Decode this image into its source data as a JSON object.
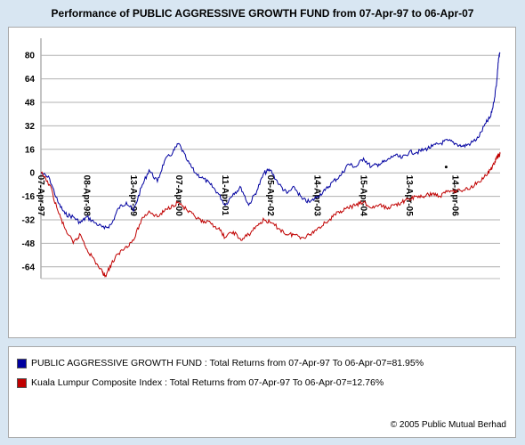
{
  "chart_data": {
    "type": "line",
    "title": "Performance of PUBLIC AGGRESSIVE GROWTH FUND from 07-Apr-97 to 06-Apr-07",
    "x_range": [
      "1997-04-07",
      "2007-04-06"
    ],
    "xtick_labels": [
      "07-Apr-97",
      "08-Apr-98",
      "13-Apr-99",
      "07-Apr-00",
      "11-Apr-01",
      "05-Apr-02",
      "14-Apr-03",
      "15-Apr-04",
      "13-Apr-05",
      "14-Apr-06"
    ],
    "xtick_dates": [
      "1997-04-07",
      "1998-04-08",
      "1999-04-13",
      "2000-04-07",
      "2001-04-11",
      "2002-04-05",
      "2003-04-14",
      "2004-04-15",
      "2005-04-13",
      "2006-04-14"
    ],
    "yticks": [
      80,
      64,
      48,
      32,
      16,
      0,
      -16,
      -32,
      -48,
      -64
    ],
    "ylim": [
      -72,
      88
    ],
    "grid": "horizontal",
    "legend_position": "bottom",
    "series": [
      {
        "name": "PUBLIC AGGRESSIVE GROWTH FUND : Total Returns from 07-Apr-97 To 06-Apr-07=81.95%",
        "color": "#0000a0",
        "dates": [
          "1997-04-07",
          "1997-06-15",
          "1997-08-20",
          "1997-10-15",
          "1997-12-20",
          "1998-02-15",
          "1998-04-08",
          "1998-06-10",
          "1998-08-25",
          "1998-10-20",
          "1998-12-15",
          "1999-02-15",
          "1999-04-13",
          "1999-06-15",
          "1999-08-15",
          "1999-10-20",
          "1999-12-15",
          "2000-02-20",
          "2000-04-07",
          "2000-06-15",
          "2000-08-15",
          "2000-10-20",
          "2000-12-15",
          "2001-02-15",
          "2001-04-11",
          "2001-06-15",
          "2001-08-15",
          "2001-10-15",
          "2001-12-20",
          "2002-02-15",
          "2002-04-05",
          "2002-06-15",
          "2002-08-15",
          "2002-10-15",
          "2002-12-15",
          "2003-02-15",
          "2003-04-14",
          "2003-06-15",
          "2003-08-15",
          "2003-10-15",
          "2003-12-15",
          "2004-02-15",
          "2004-04-15",
          "2004-06-15",
          "2004-08-15",
          "2004-10-15",
          "2004-12-15",
          "2005-02-15",
          "2005-04-13",
          "2005-06-15",
          "2005-08-15",
          "2005-10-15",
          "2005-12-15",
          "2006-02-15",
          "2006-04-14",
          "2006-06-15",
          "2006-08-15",
          "2006-10-15",
          "2006-12-15",
          "2007-01-20",
          "2007-02-15",
          "2007-03-10",
          "2007-03-25",
          "2007-04-06"
        ],
        "values": [
          0,
          -4,
          -20,
          -28,
          -30,
          -34,
          -30,
          -34,
          -38,
          -35,
          -24,
          -20,
          -26,
          -10,
          2,
          -6,
          8,
          14,
          20,
          8,
          0,
          -4,
          -8,
          -14,
          -22,
          -14,
          -10,
          -22,
          -12,
          0,
          2,
          -8,
          -14,
          -10,
          -18,
          -20,
          -16,
          -12,
          -6,
          -2,
          6,
          4,
          10,
          4,
          6,
          8,
          12,
          10,
          14,
          14,
          16,
          18,
          20,
          22,
          20,
          18,
          20,
          24,
          34,
          38,
          48,
          62,
          78,
          82
        ]
      },
      {
        "name": "Kuala Lumpur Composite Index : Total Returns from 07-Apr-97 To 06-Apr-07=12.76%",
        "color": "#c00000",
        "dates": [
          "1997-04-07",
          "1997-06-15",
          "1997-08-20",
          "1997-10-15",
          "1997-12-20",
          "1998-02-15",
          "1998-04-08",
          "1998-06-10",
          "1998-08-10",
          "1998-09-01",
          "1998-10-20",
          "1998-12-15",
          "1999-02-15",
          "1999-04-13",
          "1999-06-15",
          "1999-08-15",
          "1999-10-20",
          "1999-12-15",
          "2000-02-20",
          "2000-04-07",
          "2000-06-15",
          "2000-08-15",
          "2000-10-20",
          "2000-12-15",
          "2001-02-15",
          "2001-04-11",
          "2001-06-15",
          "2001-08-15",
          "2001-10-15",
          "2001-12-20",
          "2002-02-15",
          "2002-04-05",
          "2002-06-15",
          "2002-08-15",
          "2002-10-15",
          "2002-12-15",
          "2003-02-15",
          "2003-04-14",
          "2003-06-15",
          "2003-08-15",
          "2003-10-15",
          "2003-12-15",
          "2004-02-15",
          "2004-04-15",
          "2004-06-15",
          "2004-08-15",
          "2004-10-15",
          "2004-12-15",
          "2005-02-15",
          "2005-04-13",
          "2005-06-15",
          "2005-08-15",
          "2005-10-15",
          "2005-12-15",
          "2006-02-15",
          "2006-04-14",
          "2006-06-15",
          "2006-08-15",
          "2006-10-15",
          "2006-12-15",
          "2007-01-20",
          "2007-02-15",
          "2007-03-10",
          "2007-03-25",
          "2007-04-06"
        ],
        "values": [
          0,
          -8,
          -26,
          -38,
          -48,
          -42,
          -52,
          -60,
          -68,
          -70,
          -62,
          -55,
          -50,
          -46,
          -32,
          -26,
          -30,
          -26,
          -22,
          -20,
          -26,
          -30,
          -34,
          -34,
          -38,
          -44,
          -40,
          -46,
          -42,
          -36,
          -32,
          -34,
          -38,
          -42,
          -42,
          -44,
          -42,
          -38,
          -34,
          -30,
          -26,
          -24,
          -22,
          -20,
          -24,
          -22,
          -24,
          -22,
          -20,
          -18,
          -16,
          -16,
          -14,
          -16,
          -12,
          -12,
          -12,
          -10,
          -6,
          -2,
          2,
          6,
          10,
          12,
          13
        ]
      }
    ],
    "annotations": [
      {
        "type": "point",
        "date": "2006-02-01",
        "value": 4
      }
    ]
  },
  "copyright": "© 2005 Public Mutual Berhad"
}
